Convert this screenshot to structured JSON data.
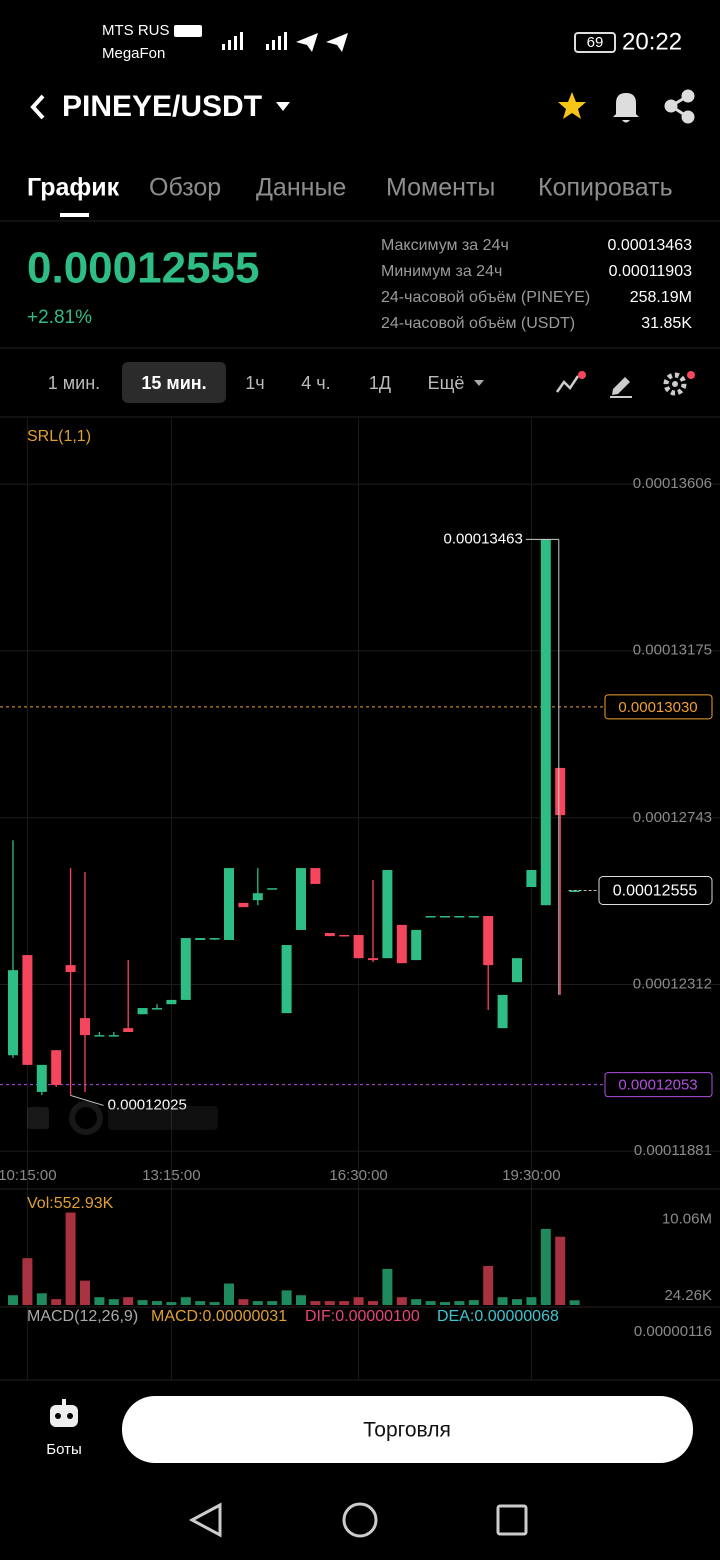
{
  "status_bar": {
    "carrier1": "MTS RUS",
    "carrier2": "MegaFon",
    "battery": "69",
    "time": "20:22"
  },
  "header": {
    "pair": "PINEYE/USDT"
  },
  "tabs": [
    "График",
    "Обзор",
    "Данные",
    "Моменты",
    "Копировать"
  ],
  "ticker": {
    "price": "0.00012555",
    "change": "+2.81%",
    "stats": [
      {
        "label": "Максимум за 24ч",
        "value": "0.00013463"
      },
      {
        "label": "Минимум за 24ч",
        "value": "0.00011903"
      },
      {
        "label": "24-часовой объём (PINEYE)",
        "value": "258.19M"
      },
      {
        "label": "24-часовой объём (USDT)",
        "value": "31.85K"
      }
    ]
  },
  "intervals": [
    "1 мин.",
    "15 мин.",
    "1ч",
    "4 ч.",
    "1Д",
    "Ещё"
  ],
  "chart_data": [
    {
      "type": "candlestick",
      "indicator": "SRL(1,1)",
      "up_color": "#2ebd85",
      "down_color": "#f6465d",
      "categories": [
        null,
        "10:15:00",
        null,
        null,
        null,
        null,
        null,
        null,
        null,
        null,
        null,
        "13:15:00",
        null,
        null,
        null,
        null,
        null,
        null,
        null,
        null,
        null,
        null,
        null,
        null,
        "16:30:00",
        null,
        null,
        null,
        null,
        null,
        null,
        null,
        null,
        null,
        null,
        null,
        "19:30:00",
        null,
        null,
        null
      ],
      "open": [
        0.00012129,
        0.00012388,
        0.00012034,
        0.00012142,
        0.00012362,
        0.00012225,
        0.00012181,
        0.00012181,
        0.00012199,
        0.00012235,
        0.00012251,
        0.00012261,
        0.00012272,
        0.00012427,
        0.00012432,
        0.00012427,
        0.00012523,
        0.0001253,
        0.00012561,
        0.00012238,
        0.00012453,
        0.00012613,
        0.00012445,
        0.0001244,
        0.0001244,
        0.0001238,
        0.0001238,
        0.00012466,
        0.00012375,
        0.00012486,
        0.00012489,
        0.00012489,
        0.00012489,
        0.00012489,
        0.00012199,
        0.00012318,
        0.00012564,
        0.00012517,
        0.00012872,
        0.00012555
      ],
      "high": [
        0.00012685,
        0.00012388,
        0.00012104,
        0.00012142,
        0.00012613,
        0.00012603,
        0.00012189,
        0.00012189,
        0.00012375,
        0.00012251,
        0.00012261,
        0.00012272,
        0.00012432,
        0.00012432,
        0.00012432,
        0.00012613,
        0.00012523,
        0.00012613,
        0.00012561,
        0.00012414,
        0.00012613,
        0.00012613,
        0.00012445,
        0.0001244,
        0.0001244,
        0.00012582,
        0.00012608,
        0.00012466,
        0.00012453,
        0.00012489,
        0.00012489,
        0.00012489,
        0.00012489,
        0.00012489,
        0.00012285,
        0.0001238,
        0.00012608,
        0.00013463,
        0.00012872,
        0.00012555
      ],
      "low": [
        0.00012122,
        0.00012104,
        0.00012026,
        0.00012047,
        0.00012025,
        0.00012034,
        0.00012181,
        0.00012181,
        0.00012189,
        0.00012235,
        0.00012251,
        0.00012261,
        0.00012272,
        0.00012427,
        0.00012427,
        0.00012427,
        0.00012512,
        0.00012517,
        0.00012561,
        0.00012238,
        0.00012453,
        0.00012572,
        0.00012437,
        0.00012437,
        0.0001238,
        0.0001237,
        0.0001238,
        0.00012367,
        0.00012375,
        0.00012486,
        0.00012489,
        0.00012489,
        0.00012489,
        0.00012246,
        0.00012199,
        0.00012318,
        0.00012564,
        0.00012517,
        0.00012285,
        0.00012555
      ],
      "close": [
        0.00012349,
        0.00012104,
        0.00012104,
        0.00012052,
        0.00012344,
        0.00012181,
        0.00012181,
        0.00012181,
        0.00012189,
        0.00012251,
        0.00012251,
        0.00012272,
        0.00012432,
        0.00012432,
        0.00012432,
        0.00012613,
        0.00012512,
        0.00012548,
        0.00012561,
        0.00012414,
        0.00012613,
        0.00012572,
        0.00012437,
        0.00012437,
        0.0001238,
        0.00012375,
        0.00012608,
        0.00012367,
        0.00012453,
        0.00012489,
        0.00012489,
        0.00012489,
        0.00012489,
        0.00012362,
        0.00012285,
        0.0001238,
        0.00012608,
        0.00013463,
        0.0001275,
        0.00012555
      ],
      "ylim": [
        0.00011858,
        0.00013777
      ],
      "yticks": [
        0.00013606,
        0.00013175,
        0.00012743,
        0.00012312,
        0.00011881
      ],
      "grid": true,
      "high_marker": 0.00013463,
      "low_marker": 0.00012025,
      "last_price": 0.00012555,
      "price_lines": [
        {
          "value": 0.0001303,
          "label": "0.00013030",
          "color": "#f0a030"
        },
        {
          "value": 0.00012053,
          "label": "0.00012053",
          "color": "#b050e0"
        }
      ]
    },
    {
      "type": "bar",
      "title": "Vol:552.93K",
      "up_color": "#1f8a5e",
      "down_color": "#a8323f",
      "values": [
        1150000,
        5520000,
        1380000,
        690000,
        10900000,
        2875000,
        920000,
        690000,
        920000,
        575000,
        460000,
        345000,
        920000,
        460000,
        345000,
        2530000,
        690000,
        460000,
        460000,
        1725000,
        1150000,
        460000,
        460000,
        460000,
        920000,
        460000,
        4255000,
        920000,
        690000,
        460000,
        345000,
        460000,
        575000,
        4600000,
        920000,
        690000,
        920000,
        8970000,
        8050000,
        552930
      ],
      "ylim": [
        0,
        11200000
      ],
      "yticks": [
        {
          "value": 10060000,
          "label": "10.06M"
        },
        {
          "value": 24260,
          "label": "24.26K"
        }
      ]
    }
  ],
  "macd": {
    "label": "MACD(12,26,9)",
    "macd": "MACD:0.00000031",
    "dif": "DIF:0.00000100",
    "dea": "DEA:0.00000068",
    "axis": "0.00000116"
  },
  "bottom": {
    "bots": "Боты",
    "trade": "Торговля"
  }
}
